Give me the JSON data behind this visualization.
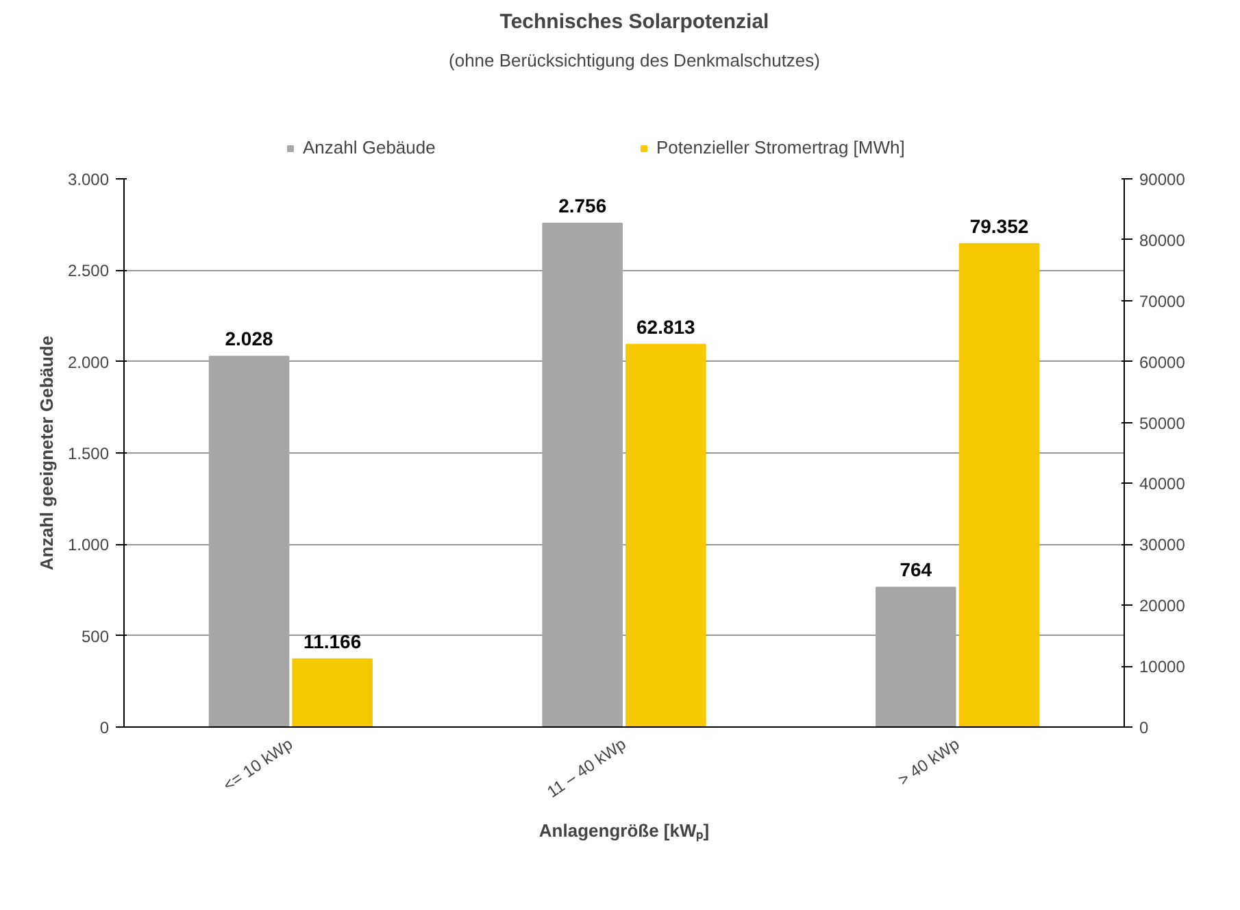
{
  "chart_data": {
    "type": "bar",
    "title": "Technisches Solarpotenzial",
    "subtitle": "(ohne Berücksichtigung des Denkmalschutzes)",
    "xlabel": "Anlagengröße [kWₚ]",
    "ylabel": "Anzahl geeigneter Gebäude",
    "categories": [
      "<= 10 kWp",
      "11 – 40 kWp",
      "> 40 kWp"
    ],
    "series": [
      {
        "name": "Anzahl Gebäude",
        "color": "#a6a6a6",
        "values": [
          2028,
          2756,
          764
        ],
        "value_labels": [
          "2.028",
          "2.756",
          "764"
        ]
      },
      {
        "name": "Potenzieller Stromertrag [MWh]",
        "color": "#f5c800",
        "axis": "y2",
        "values": [
          11166,
          62813,
          79352
        ],
        "value_labels": [
          "11.166",
          "62.813",
          "79.352"
        ]
      }
    ],
    "ylim": [
      0,
      3000
    ],
    "yticks": [
      {
        "value": 0,
        "label": "0"
      },
      {
        "value": 500,
        "label": "500"
      },
      {
        "value": 1000,
        "label": "1.000"
      },
      {
        "value": 1500,
        "label": "1.500"
      },
      {
        "value": 2000,
        "label": "2.000"
      },
      {
        "value": 2500,
        "label": "2.500"
      },
      {
        "value": 3000,
        "label": "3.000"
      }
    ],
    "y2lim": [
      0,
      90000
    ],
    "y2ticks": [
      0,
      10000,
      20000,
      30000,
      40000,
      50000,
      60000,
      70000,
      80000,
      90000
    ],
    "grid": "y",
    "legend": "top"
  }
}
